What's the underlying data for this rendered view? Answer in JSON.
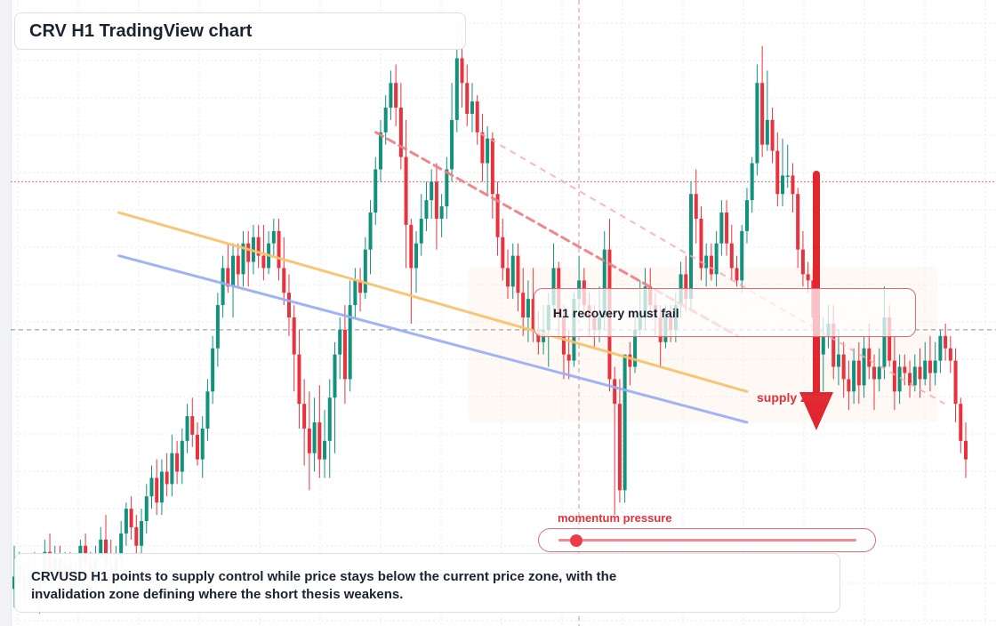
{
  "title": "CRV H1 TradingView chart",
  "annotations": {
    "note": "H1 recovery must fail",
    "supply_label": "supply zone",
    "momentum_label": "momentum pressure"
  },
  "momentum": {
    "level": 0.05
  },
  "summary": "CRVUSD H1 points to supply control while price stays below the current price zone, with the invalidation zone defining where the short thesis weakens.",
  "colors": {
    "up": "#12917c",
    "down": "#e8323e",
    "support_line": "#f7c26b",
    "trend_line": "#98aef5",
    "resistance_line": "#ef7d85",
    "arrow": "#e0262f",
    "accent": "#e0323a"
  },
  "chart_data": {
    "type": "candlestick",
    "title": "",
    "xlabel": "",
    "ylabel": "",
    "ylim": [
      0,
      100
    ],
    "xlim": [
      0,
      100
    ],
    "grid": true,
    "legend": "none",
    "reference_lines": {
      "current_price": 48,
      "invalidation_zone": 72
    },
    "candles_keys": [
      "open",
      "close",
      "high",
      "low"
    ],
    "candles": [
      [
        6,
        8,
        13,
        3
      ],
      [
        7,
        10,
        12,
        4
      ],
      [
        8,
        6,
        10,
        3
      ],
      [
        6,
        9,
        11,
        4
      ],
      [
        9,
        5,
        12,
        3
      ],
      [
        5,
        8,
        10,
        2
      ],
      [
        8,
        12,
        14,
        6
      ],
      [
        12,
        9,
        15,
        7
      ],
      [
        9,
        11,
        13,
        6
      ],
      [
        11,
        8,
        13,
        6
      ],
      [
        8,
        10,
        12,
        7
      ],
      [
        10,
        6,
        12,
        4
      ],
      [
        6,
        9,
        11,
        3
      ],
      [
        9,
        13,
        14,
        7
      ],
      [
        13,
        10,
        15,
        8
      ],
      [
        10,
        7,
        12,
        5
      ],
      [
        7,
        11,
        13,
        4
      ],
      [
        11,
        14,
        16,
        9
      ],
      [
        14,
        10,
        18,
        8
      ],
      [
        10,
        8,
        14,
        6
      ],
      [
        8,
        11,
        13,
        5
      ],
      [
        11,
        15,
        17,
        9
      ],
      [
        15,
        19,
        20,
        13
      ],
      [
        19,
        16,
        21,
        14
      ],
      [
        16,
        13,
        18,
        11
      ],
      [
        13,
        17,
        19,
        11
      ],
      [
        17,
        21,
        23,
        15
      ],
      [
        21,
        24,
        26,
        19
      ],
      [
        24,
        20,
        27,
        18
      ],
      [
        20,
        25,
        27,
        18
      ],
      [
        25,
        23,
        28,
        21
      ],
      [
        23,
        28,
        31,
        21
      ],
      [
        28,
        25,
        30,
        23
      ],
      [
        25,
        30,
        32,
        23
      ],
      [
        30,
        34,
        36,
        28
      ],
      [
        34,
        31,
        37,
        29
      ],
      [
        31,
        27,
        33,
        26
      ],
      [
        27,
        32,
        34,
        24
      ],
      [
        32,
        38,
        40,
        30
      ],
      [
        38,
        45,
        47,
        36
      ],
      [
        45,
        52,
        54,
        42
      ],
      [
        52,
        58,
        60,
        50
      ],
      [
        58,
        55,
        62,
        54
      ],
      [
        55,
        60,
        62,
        50
      ],
      [
        60,
        57,
        62,
        55
      ],
      [
        57,
        62,
        64,
        55
      ],
      [
        62,
        59,
        64,
        55
      ],
      [
        59,
        63,
        65,
        57
      ],
      [
        63,
        60,
        65,
        58
      ],
      [
        60,
        58,
        65,
        56
      ],
      [
        58,
        62,
        64,
        57
      ],
      [
        62,
        64,
        66,
        60
      ],
      [
        64,
        58,
        66,
        56
      ],
      [
        58,
        54,
        63,
        52
      ],
      [
        54,
        50,
        57,
        47
      ],
      [
        50,
        44,
        52,
        38
      ],
      [
        44,
        36,
        48,
        32
      ],
      [
        36,
        32,
        40,
        26
      ],
      [
        32,
        28,
        38,
        22
      ],
      [
        28,
        33,
        37,
        25
      ],
      [
        33,
        27,
        39,
        24
      ],
      [
        27,
        30,
        35,
        24
      ],
      [
        30,
        37,
        40,
        24
      ],
      [
        37,
        44,
        46,
        28
      ],
      [
        44,
        48,
        50,
        40
      ],
      [
        48,
        40,
        52,
        36
      ],
      [
        40,
        52,
        56,
        38
      ],
      [
        52,
        56,
        58,
        50
      ],
      [
        56,
        54,
        58,
        51
      ],
      [
        54,
        61,
        63,
        53
      ],
      [
        61,
        67,
        69,
        57
      ],
      [
        67,
        74,
        76,
        65
      ],
      [
        74,
        80,
        82,
        72
      ],
      [
        80,
        84,
        86,
        78
      ],
      [
        84,
        88,
        90,
        82
      ],
      [
        88,
        84,
        91,
        81
      ],
      [
        84,
        76,
        88,
        74
      ],
      [
        76,
        65,
        82,
        58
      ],
      [
        65,
        58,
        66,
        49
      ],
      [
        58,
        62,
        64,
        54
      ],
      [
        62,
        66,
        70,
        60
      ],
      [
        66,
        69,
        72,
        64
      ],
      [
        69,
        72,
        74,
        66
      ],
      [
        72,
        66,
        75,
        61
      ],
      [
        66,
        68,
        70,
        63
      ],
      [
        68,
        74,
        76,
        66
      ],
      [
        74,
        82,
        88,
        72
      ],
      [
        82,
        92,
        98,
        80
      ],
      [
        92,
        88,
        96,
        84
      ],
      [
        88,
        83,
        91,
        81
      ],
      [
        83,
        85,
        88,
        80
      ],
      [
        85,
        80,
        86,
        78
      ],
      [
        80,
        75,
        83,
        72
      ],
      [
        75,
        79,
        81,
        70
      ],
      [
        79,
        70,
        80,
        66
      ],
      [
        70,
        63,
        72,
        60
      ],
      [
        63,
        58,
        66,
        56
      ],
      [
        58,
        55,
        61,
        53
      ],
      [
        55,
        60,
        62,
        53
      ],
      [
        60,
        54,
        62,
        51
      ],
      [
        54,
        50,
        58,
        47
      ],
      [
        50,
        53,
        56,
        46
      ],
      [
        53,
        48,
        58,
        46
      ],
      [
        48,
        46,
        51,
        44
      ],
      [
        46,
        48,
        52,
        44
      ],
      [
        48,
        52,
        54,
        42
      ],
      [
        52,
        58,
        62,
        50
      ],
      [
        58,
        50,
        59,
        47
      ],
      [
        50,
        44,
        52,
        40
      ],
      [
        44,
        43,
        48,
        40
      ],
      [
        43,
        53,
        54,
        42
      ],
      [
        53,
        56,
        60,
        51
      ],
      [
        56,
        52,
        58,
        50
      ],
      [
        52,
        50,
        54,
        47
      ],
      [
        50,
        48,
        52,
        45
      ],
      [
        48,
        50,
        55,
        46
      ],
      [
        50,
        61,
        64,
        48
      ],
      [
        61,
        40,
        66,
        38
      ],
      [
        40,
        36,
        42,
        18
      ],
      [
        36,
        22,
        40,
        20
      ],
      [
        22,
        44,
        44,
        20
      ],
      [
        44,
        42,
        46,
        39
      ],
      [
        42,
        48,
        50,
        41
      ],
      [
        48,
        50,
        56,
        47
      ],
      [
        50,
        55,
        58,
        48
      ],
      [
        55,
        52,
        58,
        50
      ],
      [
        52,
        50,
        54,
        47
      ],
      [
        50,
        46,
        52,
        42
      ],
      [
        46,
        50,
        52,
        45
      ],
      [
        50,
        48,
        52,
        46
      ],
      [
        48,
        52,
        54,
        46
      ],
      [
        52,
        57,
        59,
        50
      ],
      [
        57,
        53,
        60,
        51
      ],
      [
        53,
        70,
        72,
        51
      ],
      [
        70,
        66,
        74,
        62
      ],
      [
        66,
        58,
        68,
        56
      ],
      [
        58,
        60,
        62,
        55
      ],
      [
        60,
        57,
        62,
        56
      ],
      [
        57,
        62,
        64,
        55
      ],
      [
        62,
        67,
        69,
        60
      ],
      [
        67,
        62,
        69,
        60
      ],
      [
        62,
        58,
        65,
        56
      ],
      [
        58,
        56,
        60,
        55
      ],
      [
        56,
        64,
        65,
        54
      ],
      [
        64,
        69,
        71,
        62
      ],
      [
        69,
        75,
        76,
        67
      ],
      [
        75,
        88,
        91,
        73
      ],
      [
        88,
        78,
        94,
        76
      ],
      [
        78,
        82,
        90,
        77
      ],
      [
        82,
        77,
        84,
        75
      ],
      [
        77,
        70,
        80,
        68
      ],
      [
        70,
        73,
        79,
        68
      ],
      [
        73,
        73,
        78,
        71
      ],
      [
        73,
        70,
        75,
        67
      ],
      [
        70,
        61,
        71,
        58
      ],
      [
        61,
        57,
        64,
        55
      ],
      [
        57,
        56,
        59,
        54
      ],
      [
        56,
        50,
        58,
        48
      ],
      [
        50,
        44,
        56,
        41
      ],
      [
        44,
        47,
        50,
        38
      ],
      [
        47,
        49,
        52,
        45
      ],
      [
        49,
        42,
        52,
        40
      ],
      [
        42,
        44,
        48,
        39
      ],
      [
        44,
        40,
        46,
        37
      ],
      [
        40,
        38,
        43,
        35
      ],
      [
        38,
        43,
        45,
        36
      ],
      [
        43,
        39,
        46,
        36
      ],
      [
        39,
        45,
        47,
        37
      ],
      [
        45,
        42,
        49,
        40
      ],
      [
        42,
        40,
        44,
        35
      ],
      [
        40,
        42,
        45,
        38
      ],
      [
        42,
        50,
        55,
        40
      ],
      [
        50,
        43,
        52,
        42
      ],
      [
        43,
        38,
        47,
        35
      ],
      [
        38,
        42,
        44,
        36
      ],
      [
        42,
        41,
        44,
        39
      ],
      [
        41,
        39,
        43,
        37
      ],
      [
        39,
        42,
        44,
        38
      ],
      [
        42,
        40,
        45,
        37
      ],
      [
        40,
        43,
        46,
        39
      ],
      [
        43,
        41,
        47,
        38
      ],
      [
        41,
        43,
        46,
        39
      ],
      [
        43,
        47,
        48,
        41
      ],
      [
        47,
        45,
        49,
        43
      ],
      [
        45,
        43,
        47,
        41
      ],
      [
        43,
        36,
        45,
        33
      ],
      [
        36,
        30,
        37,
        28
      ],
      [
        30,
        27,
        33,
        24
      ]
    ],
    "trendlines": [
      {
        "from": [
          11,
          67
        ],
        "to": [
          77,
          38
        ]
      },
      {
        "from": [
          11,
          60
        ],
        "to": [
          77,
          33
        ]
      },
      {
        "from": [
          38,
          80
        ],
        "to": [
          76,
          47
        ]
      }
    ]
  }
}
